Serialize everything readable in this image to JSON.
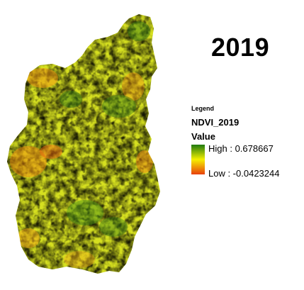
{
  "map": {
    "title": "2019",
    "colors": {
      "high": "#1f7a10",
      "mid": "#f5f000",
      "low": "#e8400c"
    }
  },
  "legend": {
    "heading": "Legend",
    "layer_name": "NDVI_2019",
    "field_label": "Value",
    "high_label": "High : 0.678667",
    "low_label": "Low : -0.0423244"
  }
}
